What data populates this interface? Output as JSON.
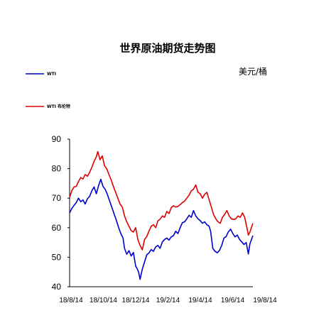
{
  "chart_data": {
    "type": "line",
    "title": "世界原油期货走势图",
    "unit_label": "美元/桶",
    "ylim": [
      40,
      90
    ],
    "yticks": [
      90,
      80,
      70,
      60,
      50,
      40
    ],
    "xticks": [
      "18/8/14",
      "18/10/14",
      "18/12/14",
      "19/2/14",
      "19/4/14",
      "19/6/14",
      "19/8/14"
    ],
    "legend_position": "top-left",
    "grid": false,
    "series": [
      {
        "name": "WTI",
        "color": "#0000cc",
        "values": [
          [
            0,
            65.0
          ],
          [
            3,
            66.5
          ],
          [
            6,
            67.6
          ],
          [
            9,
            68.5
          ],
          [
            12,
            70.0
          ],
          [
            15,
            68.8
          ],
          [
            18,
            69.4
          ],
          [
            21,
            68.0
          ],
          [
            24,
            69.8
          ],
          [
            27,
            70.6
          ],
          [
            30,
            72.5
          ],
          [
            33,
            73.8
          ],
          [
            36,
            71.5
          ],
          [
            39,
            74.2
          ],
          [
            42,
            76.4
          ],
          [
            45,
            74.0
          ],
          [
            48,
            73.0
          ],
          [
            51,
            71.2
          ],
          [
            54,
            69.0
          ],
          [
            57,
            66.9
          ],
          [
            60,
            64.6
          ],
          [
            63,
            62.5
          ],
          [
            66,
            60.1
          ],
          [
            69,
            58.0
          ],
          [
            72,
            56.5
          ],
          [
            74,
            53.0
          ],
          [
            77,
            51.0
          ],
          [
            80,
            52.2
          ],
          [
            83,
            50.4
          ],
          [
            86,
            51.6
          ],
          [
            89,
            47.0
          ],
          [
            91,
            46.1
          ],
          [
            93,
            45.0
          ],
          [
            95,
            42.5
          ],
          [
            98,
            46.0
          ],
          [
            101,
            48.4
          ],
          [
            104,
            50.8
          ],
          [
            107,
            51.5
          ],
          [
            110,
            52.6
          ],
          [
            113,
            52.0
          ],
          [
            116,
            53.5
          ],
          [
            119,
            54.0
          ],
          [
            122,
            53.0
          ],
          [
            125,
            55.2
          ],
          [
            128,
            56.0
          ],
          [
            131,
            56.5
          ],
          [
            134,
            55.8
          ],
          [
            137,
            56.9
          ],
          [
            140,
            57.3
          ],
          [
            143,
            58.8
          ],
          [
            146,
            58.0
          ],
          [
            149,
            60.0
          ],
          [
            152,
            61.7
          ],
          [
            155,
            62.0
          ],
          [
            158,
            63.0
          ],
          [
            161,
            64.2
          ],
          [
            164,
            63.5
          ],
          [
            167,
            65.8
          ],
          [
            170,
            64.0
          ],
          [
            173,
            63.0
          ],
          [
            176,
            62.4
          ],
          [
            179,
            61.5
          ],
          [
            182,
            62.0
          ],
          [
            185,
            61.0
          ],
          [
            188,
            60.5
          ],
          [
            190,
            58.8
          ],
          [
            193,
            53.0
          ],
          [
            196,
            52.0
          ],
          [
            199,
            51.5
          ],
          [
            202,
            52.3
          ],
          [
            205,
            54.0
          ],
          [
            208,
            56.5
          ],
          [
            211,
            57.0
          ],
          [
            214,
            58.6
          ],
          [
            217,
            59.5
          ],
          [
            220,
            58.0
          ],
          [
            223,
            56.9
          ],
          [
            226,
            57.5
          ],
          [
            229,
            56.0
          ],
          [
            232,
            55.2
          ],
          [
            235,
            54.3
          ],
          [
            238,
            55.0
          ],
          [
            241,
            51.1
          ],
          [
            243,
            54.5
          ],
          [
            245,
            55.9
          ],
          [
            247,
            57.3
          ]
        ]
      },
      {
        "name": "WTI 布伦特",
        "color": "#dd0000",
        "values": [
          [
            0,
            70.2
          ],
          [
            3,
            72.5
          ],
          [
            6,
            73.8
          ],
          [
            9,
            74.0
          ],
          [
            12,
            75.6
          ],
          [
            15,
            77.0
          ],
          [
            18,
            76.5
          ],
          [
            21,
            78.0
          ],
          [
            24,
            77.4
          ],
          [
            27,
            78.8
          ],
          [
            30,
            80.4
          ],
          [
            33,
            82.5
          ],
          [
            36,
            84.0
          ],
          [
            38,
            85.8
          ],
          [
            41,
            83.0
          ],
          [
            44,
            84.3
          ],
          [
            47,
            81.0
          ],
          [
            50,
            80.0
          ],
          [
            53,
            78.0
          ],
          [
            56,
            76.2
          ],
          [
            59,
            74.0
          ],
          [
            62,
            72.0
          ],
          [
            65,
            70.0
          ],
          [
            68,
            68.0
          ],
          [
            71,
            67.0
          ],
          [
            74,
            64.0
          ],
          [
            77,
            62.0
          ],
          [
            80,
            60.5
          ],
          [
            83,
            59.0
          ],
          [
            86,
            58.5
          ],
          [
            89,
            60.0
          ],
          [
            92,
            56.0
          ],
          [
            95,
            54.0
          ],
          [
            98,
            52.5
          ],
          [
            101,
            56.0
          ],
          [
            104,
            57.0
          ],
          [
            107,
            58.9
          ],
          [
            110,
            60.5
          ],
          [
            113,
            61.0
          ],
          [
            116,
            60.0
          ],
          [
            119,
            62.3
          ],
          [
            122,
            62.9
          ],
          [
            125,
            64.0
          ],
          [
            128,
            63.5
          ],
          [
            131,
            65.5
          ],
          [
            134,
            64.8
          ],
          [
            137,
            66.8
          ],
          [
            140,
            67.4
          ],
          [
            143,
            67.0
          ],
          [
            146,
            67.2
          ],
          [
            149,
            67.8
          ],
          [
            152,
            68.5
          ],
          [
            155,
            69.0
          ],
          [
            158,
            70.0
          ],
          [
            161,
            71.0
          ],
          [
            164,
            72.5
          ],
          [
            167,
            73.0
          ],
          [
            170,
            74.5
          ],
          [
            173,
            72.0
          ],
          [
            176,
            71.5
          ],
          [
            179,
            70.0
          ],
          [
            182,
            71.3
          ],
          [
            185,
            72.0
          ],
          [
            188,
            69.5
          ],
          [
            191,
            67.0
          ],
          [
            194,
            64.5
          ],
          [
            197,
            63.0
          ],
          [
            200,
            62.0
          ],
          [
            203,
            61.5
          ],
          [
            206,
            63.5
          ],
          [
            209,
            64.5
          ],
          [
            212,
            65.8
          ],
          [
            215,
            64.0
          ],
          [
            218,
            63.0
          ],
          [
            221,
            62.8
          ],
          [
            224,
            63.0
          ],
          [
            227,
            64.0
          ],
          [
            230,
            63.5
          ],
          [
            233,
            65.0
          ],
          [
            236,
            63.5
          ],
          [
            239,
            60.0
          ],
          [
            241,
            57.5
          ],
          [
            243,
            58.5
          ],
          [
            245,
            60.0
          ],
          [
            247,
            61.5
          ]
        ]
      }
    ]
  }
}
